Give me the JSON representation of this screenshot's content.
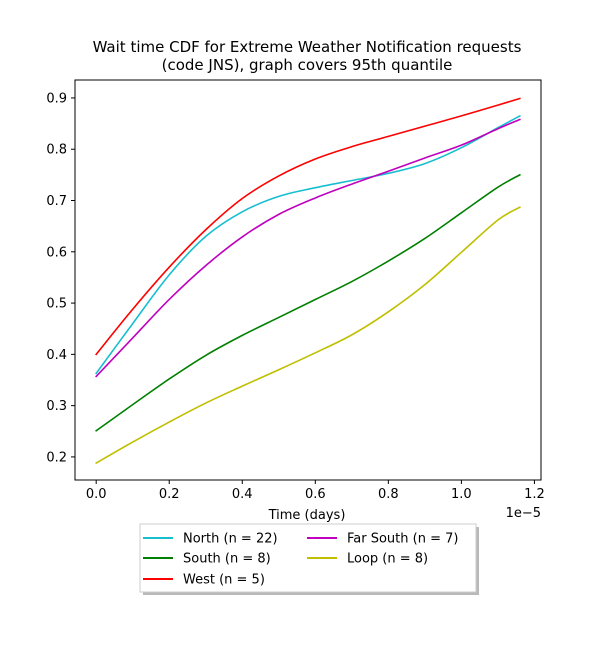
{
  "chart_data": {
    "type": "line",
    "title_lines": [
      "Wait time CDF for Extreme Weather Notification  requests",
      "(code JNS), graph covers 95th quantile"
    ],
    "xlabel": "Time (days)",
    "ylabel": "",
    "x_offset_label": "1e−5",
    "xlim": [
      -0.058,
      1.218
    ],
    "ylim": [
      0.155,
      0.935
    ],
    "x_ticks": [
      0.0,
      0.2,
      0.4,
      0.6,
      0.8,
      1.0,
      1.2
    ],
    "y_ticks": [
      0.2,
      0.3,
      0.4,
      0.5,
      0.6,
      0.7,
      0.8,
      0.9
    ],
    "x": [
      0.0,
      0.1,
      0.2,
      0.3,
      0.4,
      0.5,
      0.6,
      0.7,
      0.8,
      0.9,
      1.0,
      1.1,
      1.16
    ],
    "series": [
      {
        "name": "North (n = 22)",
        "color": "#17becf",
        "values": [
          0.363,
          0.46,
          0.555,
          0.63,
          0.678,
          0.708,
          0.725,
          0.739,
          0.753,
          0.772,
          0.803,
          0.842,
          0.865
        ]
      },
      {
        "name": "West (n = 5)",
        "color": "#ff0000",
        "values": [
          0.4,
          0.488,
          0.57,
          0.643,
          0.704,
          0.748,
          0.781,
          0.805,
          0.825,
          0.845,
          0.865,
          0.886,
          0.899
        ]
      },
      {
        "name": "Loop (n = 8)",
        "color": "#bfbf00",
        "values": [
          0.188,
          0.229,
          0.268,
          0.305,
          0.338,
          0.37,
          0.403,
          0.438,
          0.483,
          0.536,
          0.599,
          0.662,
          0.687
        ]
      },
      {
        "name": "South (n = 8)",
        "color": "#008000",
        "values": [
          0.251,
          0.302,
          0.352,
          0.398,
          0.437,
          0.472,
          0.507,
          0.542,
          0.582,
          0.626,
          0.676,
          0.726,
          0.75
        ]
      },
      {
        "name": "Far South (n = 7)",
        "color": "#bf00bf",
        "values": [
          0.357,
          0.432,
          0.507,
          0.573,
          0.629,
          0.673,
          0.705,
          0.732,
          0.757,
          0.783,
          0.808,
          0.84,
          0.858
        ]
      }
    ],
    "legend_order": [
      0,
      3,
      1,
      4,
      2
    ],
    "legend_position": "below-center",
    "grid": false
  }
}
